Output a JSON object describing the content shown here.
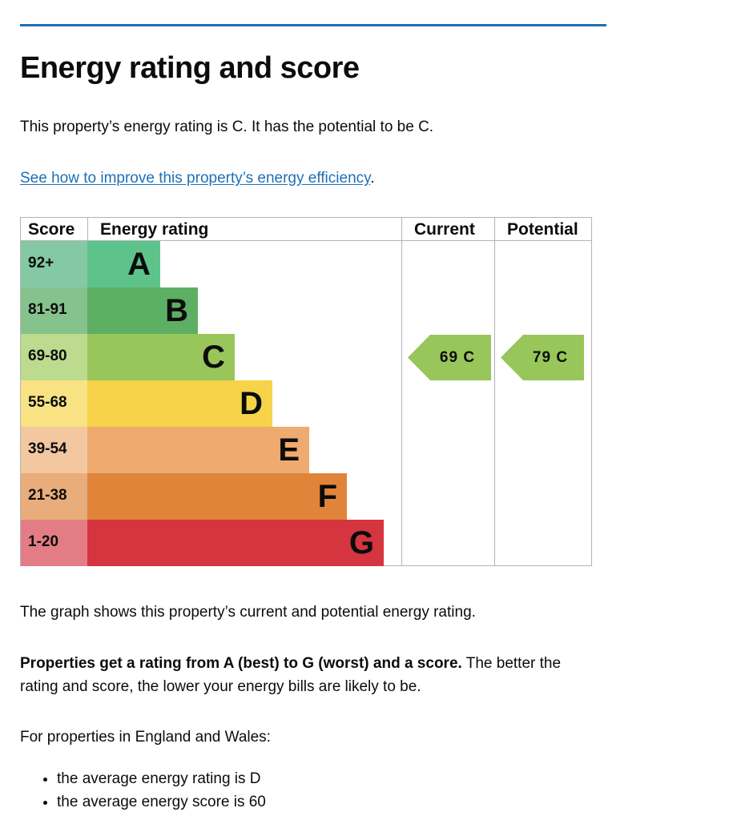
{
  "page": {
    "title": "Energy rating and score",
    "intro": "This property’s energy rating is C. It has the potential to be C.",
    "improve_link": "See how to improve this property’s energy efficiency",
    "improve_after": ".",
    "graph_note": "The graph shows this property’s current and potential energy rating.",
    "rating_bold": "Properties get a rating from A (best) to G (worst) and a score.",
    "rating_rest": " The better the rating and score, the lower your energy bills are likely to be.",
    "england_wales": "For properties in England and Wales:",
    "averages": [
      "the average energy rating is D",
      "the average energy score is 60"
    ]
  },
  "chart": {
    "headers": {
      "score": "Score",
      "rating": "Energy rating",
      "current": "Current",
      "potential": "Potential"
    },
    "bands": [
      {
        "letter": "A",
        "range": "92+",
        "color": "#5ec38b",
        "score_bg": "#85c8a4"
      },
      {
        "letter": "B",
        "range": "81-91",
        "color": "#5db063",
        "score_bg": "#86c28c"
      },
      {
        "letter": "C",
        "range": "69-80",
        "color": "#98c65a",
        "score_bg": "#bcdb8f"
      },
      {
        "letter": "D",
        "range": "55-68",
        "color": "#f6d349",
        "score_bg": "#f8e283"
      },
      {
        "letter": "E",
        "range": "39-54",
        "color": "#eeaa6f",
        "score_bg": "#f3c8a0"
      },
      {
        "letter": "F",
        "range": "21-38",
        "color": "#e0843a",
        "score_bg": "#e8ad7b"
      },
      {
        "letter": "G",
        "range": "1-20",
        "color": "#d5353e",
        "score_bg": "#e37c85"
      }
    ],
    "current": {
      "label": "69 C",
      "band": "C",
      "color": "#98c65a"
    },
    "potential": {
      "label": "79 C",
      "band": "C",
      "color": "#98c65a"
    }
  }
}
